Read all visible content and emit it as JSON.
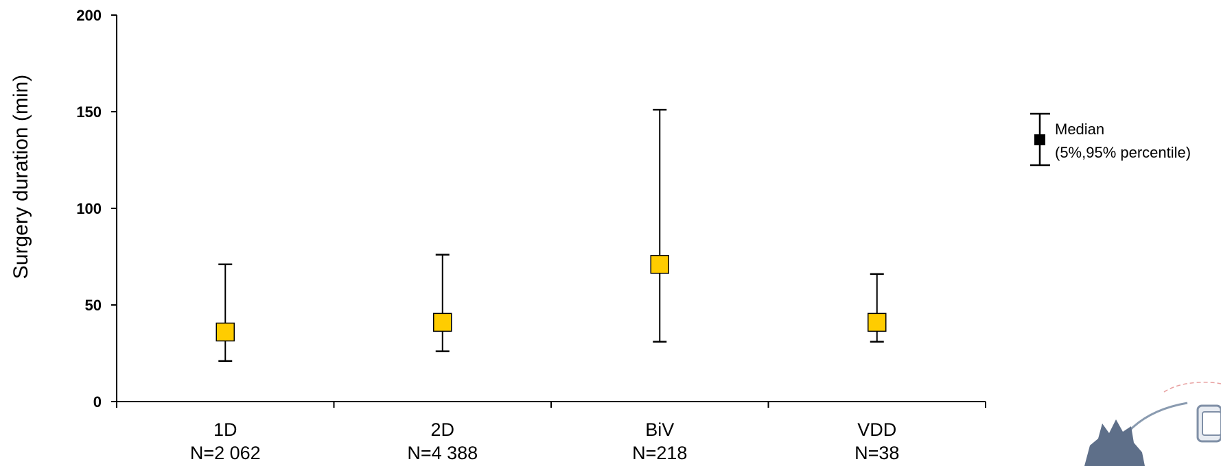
{
  "chart_data": {
    "type": "scatter",
    "ylabel": "Surgery duration (min)",
    "ylim": [
      0,
      200
    ],
    "yticks": [
      0,
      50,
      100,
      150,
      200
    ],
    "grid": false,
    "categories": [
      {
        "name": "1D",
        "n_label": "N=2 062"
      },
      {
        "name": "2D",
        "n_label": "N=4 388"
      },
      {
        "name": "BiV",
        "n_label": "N=218"
      },
      {
        "name": "VDD",
        "n_label": "N=38"
      }
    ],
    "series": [
      {
        "median": [
          36,
          41,
          71,
          41
        ],
        "p5": [
          21,
          26,
          31,
          31
        ],
        "p95": [
          71,
          76,
          151,
          66
        ]
      }
    ],
    "marker_color": "#FFCC00",
    "legend": {
      "position": "right",
      "line1": "Median",
      "line2": "(5%,95% percentile)"
    }
  }
}
